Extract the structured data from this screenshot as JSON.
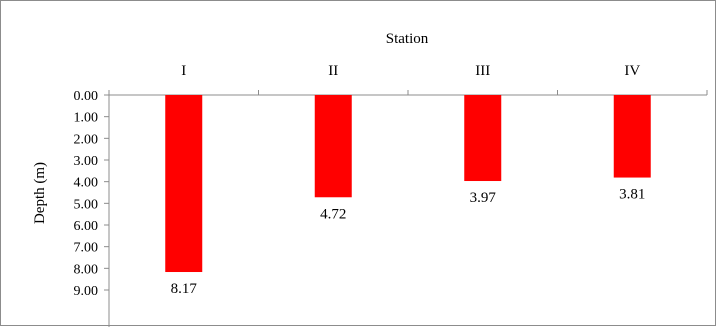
{
  "chart_data": {
    "type": "bar",
    "orientation": "vertical-inverted",
    "xlabel": "Station",
    "ylabel": "Depth (m)",
    "categories": [
      "I",
      "II",
      "III",
      "IV"
    ],
    "values": [
      8.17,
      4.72,
      3.97,
      3.81
    ],
    "data_labels": [
      "8.17",
      "4.72",
      "3.97",
      "3.81"
    ],
    "ylim": [
      0,
      9
    ],
    "y_inverted": true,
    "x_axis_position": "top",
    "yticks": [
      "0.00",
      "1.00",
      "2.00",
      "3.00",
      "4.00",
      "5.00",
      "6.00",
      "7.00",
      "8.00",
      "9.00"
    ],
    "bar_color": "#ff0000",
    "grid": false,
    "legend": "none"
  }
}
